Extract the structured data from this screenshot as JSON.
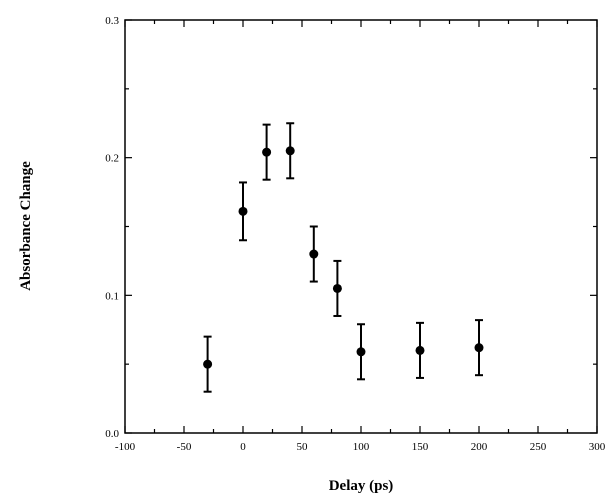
{
  "chart_data": {
    "type": "scatter",
    "title": "",
    "xlabel": "Delay (ps)",
    "ylabel": "Absorbance Change",
    "xlim": [
      -100,
      300
    ],
    "ylim": [
      0.0,
      0.3
    ],
    "x_ticks": [
      -100,
      -50,
      0,
      50,
      100,
      150,
      200,
      250,
      300
    ],
    "x_tick_labels": [
      "-100",
      "-50",
      "0",
      "50",
      "100",
      "150",
      "200",
      "250",
      "300"
    ],
    "y_ticks": [
      0.0,
      0.1,
      0.2,
      0.3
    ],
    "y_tick_labels": [
      "0.0",
      "0.1",
      "0.2",
      "0.3"
    ],
    "grid": false,
    "error_bars": true,
    "series": [
      {
        "marker": "filled-circle",
        "color": "#000000",
        "points": [
          {
            "x": -30,
            "y": 0.05,
            "err": 0.02
          },
          {
            "x": 0,
            "y": 0.161,
            "err": 0.021
          },
          {
            "x": 20,
            "y": 0.204,
            "err": 0.02
          },
          {
            "x": 40,
            "y": 0.205,
            "err": 0.02
          },
          {
            "x": 60,
            "y": 0.13,
            "err": 0.02
          },
          {
            "x": 80,
            "y": 0.105,
            "err": 0.02
          },
          {
            "x": 100,
            "y": 0.059,
            "err": 0.02
          },
          {
            "x": 150,
            "y": 0.06,
            "err": 0.02
          },
          {
            "x": 200,
            "y": 0.062,
            "err": 0.02
          }
        ]
      }
    ]
  }
}
